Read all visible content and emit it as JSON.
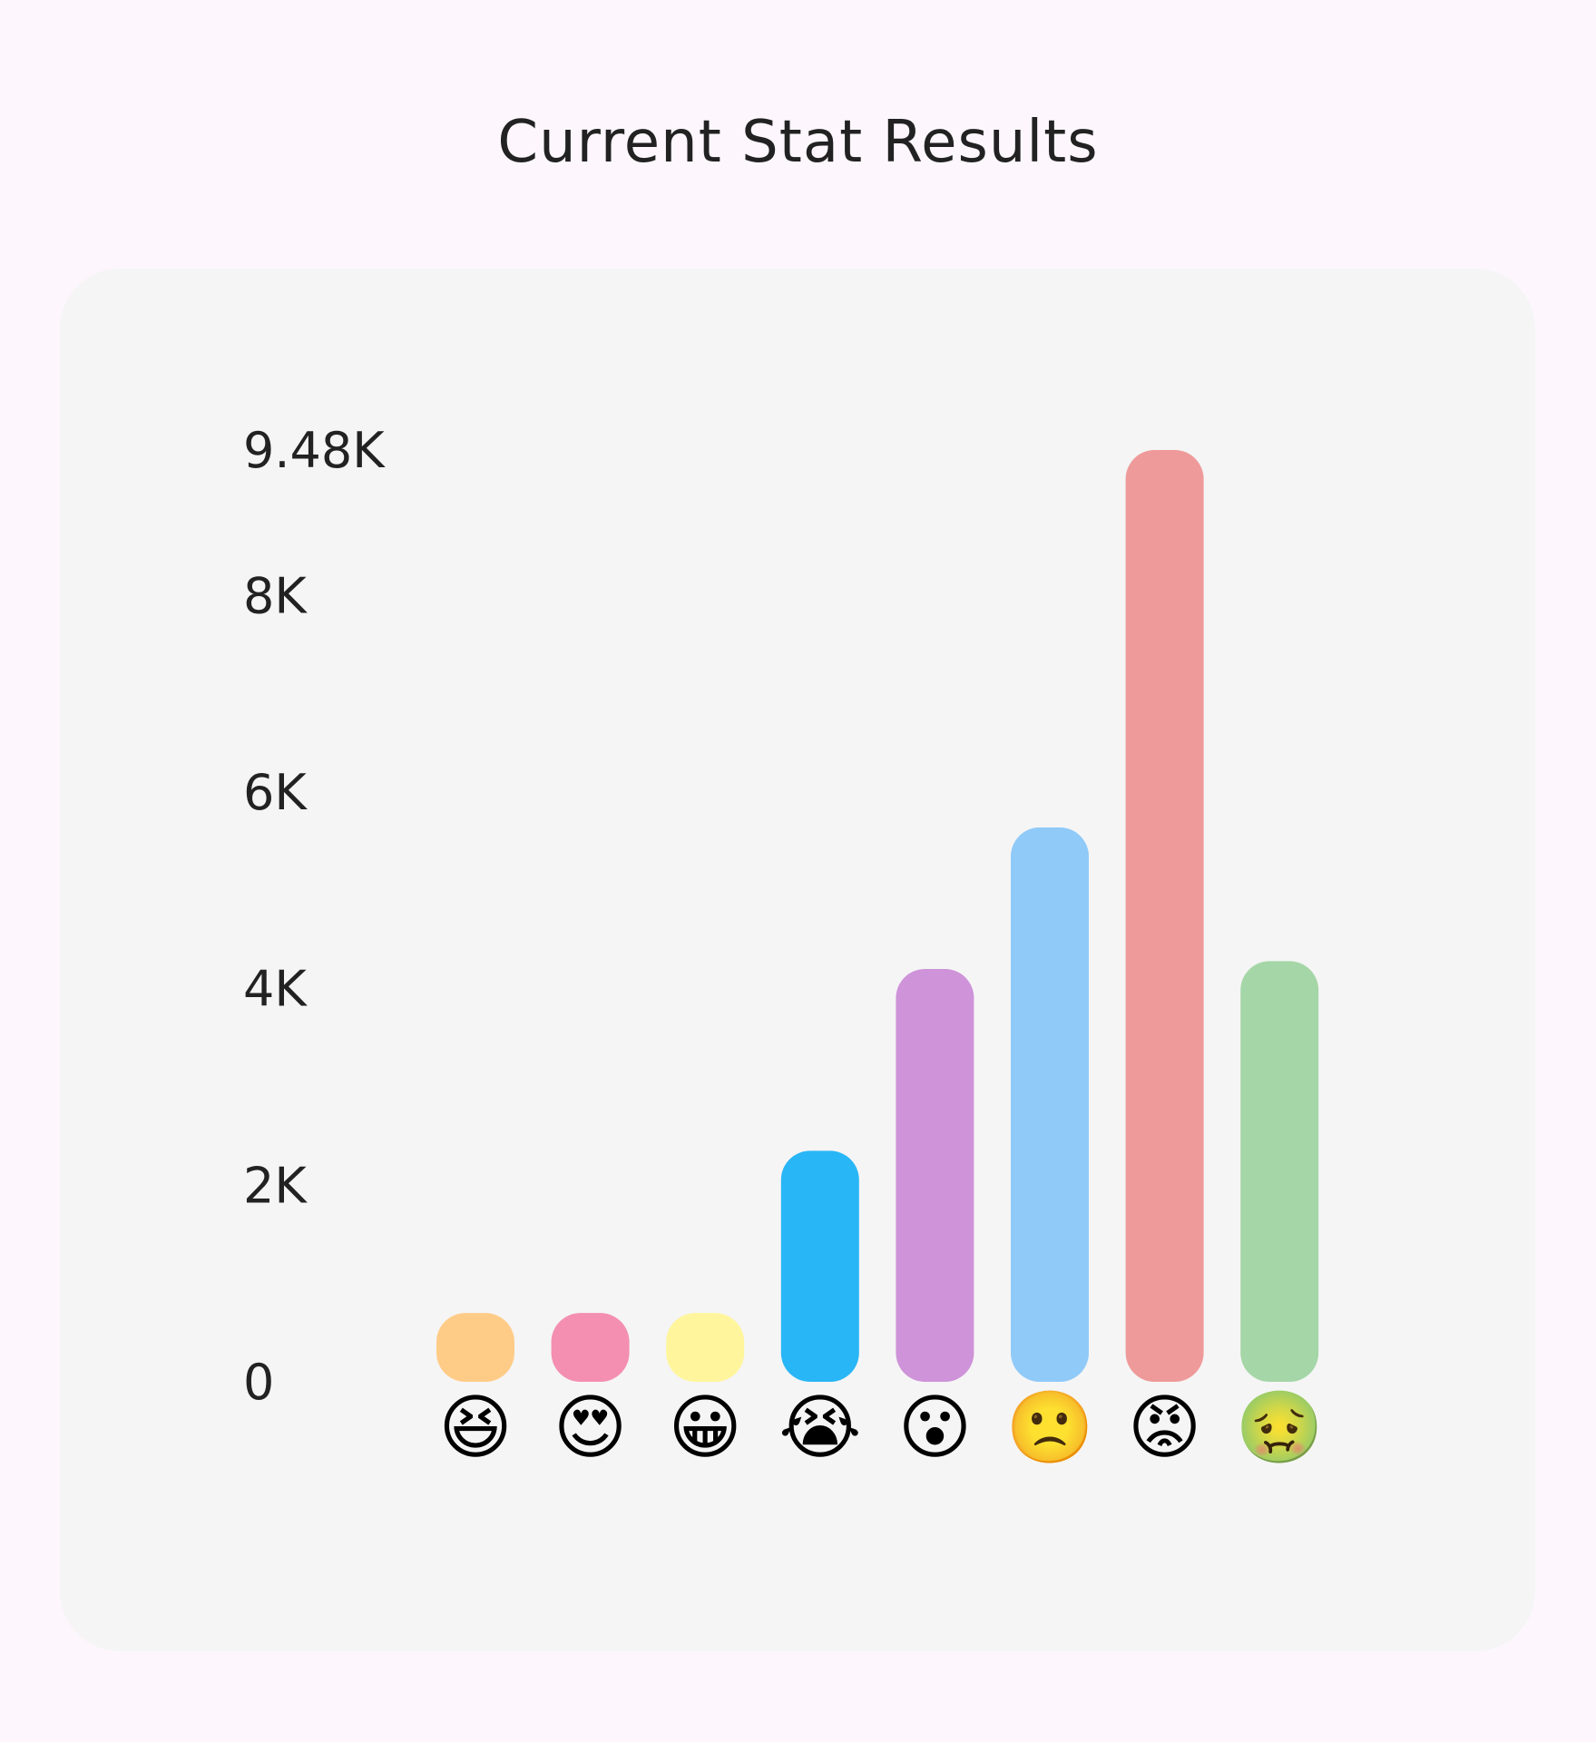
{
  "title": "Current Stat Results",
  "chart_data": {
    "type": "bar",
    "title": "Current Stat Results",
    "categories": [
      "laughing-crying",
      "heart-eyes",
      "grinning",
      "crying",
      "surprised",
      "sad",
      "angry",
      "sick"
    ],
    "category_icons": [
      "😆",
      "😍",
      "😀",
      "😭",
      "😮",
      "🙁",
      "😡",
      "🤢"
    ],
    "values": [
      700,
      700,
      700,
      2350,
      4200,
      5640,
      9480,
      4280
    ],
    "bar_colors": [
      "#ffcc88",
      "#f48fb1",
      "#fff59d",
      "#29b6f6",
      "#ce93d8",
      "#90caf9",
      "#ef9a9a",
      "#a5d6a7"
    ],
    "y_ticks": [
      {
        "value": 0,
        "label": "0"
      },
      {
        "value": 2000,
        "label": "2K"
      },
      {
        "value": 4000,
        "label": "4K"
      },
      {
        "value": 6000,
        "label": "6K"
      },
      {
        "value": 8000,
        "label": "8K"
      },
      {
        "value": 9480,
        "label": "9.48K"
      }
    ],
    "ylim": [
      0,
      9480
    ],
    "grid": false
  }
}
